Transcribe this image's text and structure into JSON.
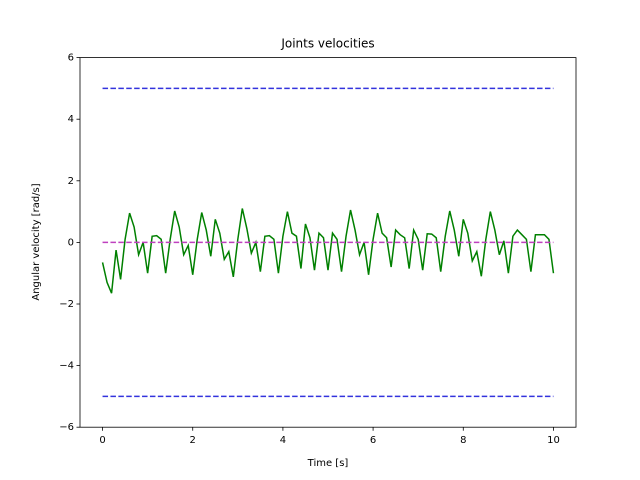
{
  "chart_data": {
    "type": "line",
    "title": "Joints velocities",
    "xlabel": "Time [s]",
    "ylabel": "Angular velocity [rad/s]",
    "xlim": [
      -0.5,
      10.5
    ],
    "ylim": [
      -6,
      6
    ],
    "xticks": [
      0,
      2,
      4,
      6,
      8,
      10
    ],
    "yticks": [
      {
        "value": -6,
        "label": "−6"
      },
      {
        "value": -4,
        "label": "−4"
      },
      {
        "value": -2,
        "label": "−2"
      },
      0,
      2,
      4,
      6
    ],
    "grid": false,
    "series": [
      {
        "color": "#008000",
        "linestyle": "solid",
        "x": [
          0,
          0.1,
          0.2,
          0.3,
          0.4,
          0.5,
          0.6,
          0.7,
          0.8,
          0.9,
          1,
          1.1,
          1.2,
          1.3,
          1.4,
          1.5,
          1.6,
          1.7,
          1.8,
          1.9,
          2,
          2.1,
          2.2,
          2.3,
          2.4,
          2.5,
          2.6,
          2.7,
          2.8,
          2.9,
          3,
          3.1,
          3.2,
          3.3,
          3.4,
          3.5,
          3.6,
          3.7,
          3.8,
          3.9,
          4,
          4.1,
          4.2,
          4.3,
          4.4,
          4.5,
          4.6,
          4.7,
          4.8,
          4.9,
          5,
          5.1,
          5.2,
          5.3,
          5.4,
          5.5,
          5.6,
          5.7,
          5.8,
          5.9,
          6,
          6.1,
          6.2,
          6.3,
          6.4,
          6.5,
          6.6,
          6.7,
          6.8,
          6.9,
          7,
          7.1,
          7.2,
          7.3,
          7.4,
          7.5,
          7.6,
          7.7,
          7.8,
          7.9,
          8,
          8.1,
          8.2,
          8.3,
          8.4,
          8.5,
          8.6,
          8.7,
          8.8,
          8.9,
          9,
          9.1,
          9.2,
          9.3,
          9.4,
          9.5,
          9.6,
          9.7,
          9.8,
          9.9,
          10
        ],
        "values": [
          -0.65,
          -1.3,
          -1.65,
          -0.25,
          -1.2,
          0.1,
          0.95,
          0.5,
          -0.4,
          0.0,
          -1.0,
          0.2,
          0.22,
          0.1,
          -1.0,
          0.1,
          1.02,
          0.5,
          -0.4,
          -0.1,
          -1.05,
          0.1,
          0.97,
          0.4,
          -0.45,
          0.75,
          0.3,
          -0.55,
          -0.3,
          -1.12,
          0.1,
          1.1,
          0.45,
          -0.35,
          0.0,
          -0.95,
          0.2,
          0.22,
          0.1,
          -1.0,
          0.2,
          1.0,
          0.3,
          0.2,
          -0.85,
          0.6,
          0.15,
          -0.9,
          0.3,
          0.15,
          -0.9,
          0.3,
          0.1,
          -0.95,
          0.2,
          1.05,
          0.4,
          -0.4,
          0.0,
          -1.05,
          0.1,
          0.95,
          0.3,
          0.15,
          -0.8,
          0.4,
          0.25,
          0.15,
          -0.85,
          0.4,
          0.1,
          -0.9,
          0.28,
          0.27,
          0.15,
          -0.95,
          0.2,
          1.02,
          0.4,
          -0.45,
          0.75,
          0.3,
          -0.6,
          -0.3,
          -1.1,
          0.1,
          1.0,
          0.4,
          -0.4,
          0.05,
          -1.0,
          0.2,
          0.4,
          0.25,
          0.1,
          -0.95,
          0.25,
          0.25,
          0.25,
          0.1,
          -1.0
        ]
      },
      {
        "color": "#3333dd",
        "linestyle": "dashed",
        "x": [
          0,
          10
        ],
        "values": [
          5,
          5
        ]
      },
      {
        "color": "#3333dd",
        "linestyle": "dashed",
        "x": [
          0,
          10
        ],
        "values": [
          -5,
          -5
        ]
      },
      {
        "color": "#bf40bf",
        "linestyle": "dashed",
        "x": [
          0,
          10
        ],
        "values": [
          0,
          0
        ]
      }
    ]
  }
}
